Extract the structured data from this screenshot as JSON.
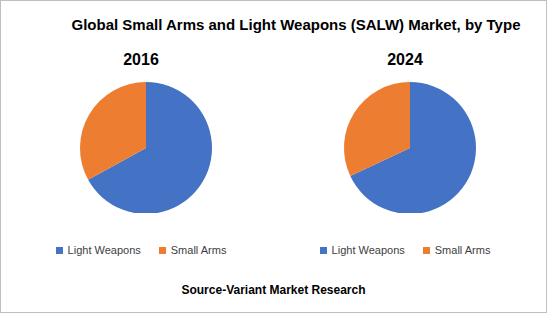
{
  "title": "Global Small Arms and Light Weapons (SALW) Market, by Type",
  "source": "Source-Variant Market Research",
  "chart_data": [
    {
      "type": "pie",
      "title": "2016",
      "categories": [
        "Light Weapons",
        "Small Arms"
      ],
      "values": [
        67,
        33
      ],
      "colors": [
        "#4472c4",
        "#ed7d31"
      ]
    },
    {
      "type": "pie",
      "title": "2024",
      "categories": [
        "Light Weapons",
        "Small Arms"
      ],
      "values": [
        68,
        32
      ],
      "colors": [
        "#4472c4",
        "#ed7d31"
      ]
    }
  ]
}
